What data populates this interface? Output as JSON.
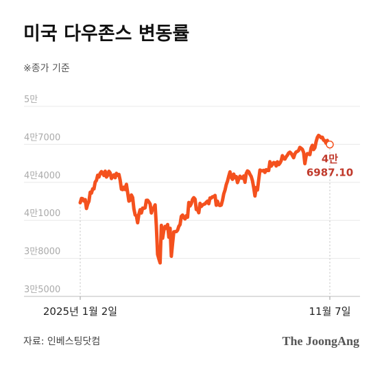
{
  "chart_data": {
    "type": "line",
    "title": "미국 다우존스 변동률",
    "subtitle": "※종가 기준",
    "source": "자료: 인베스팅닷컴",
    "brand": "The JoongAng",
    "ylim": [
      35000,
      50000
    ],
    "yticks": [
      {
        "value": 35000,
        "label": "3만5000"
      },
      {
        "value": 38000,
        "label": "3만8000"
      },
      {
        "value": 41000,
        "label": "4만1000"
      },
      {
        "value": 44000,
        "label": "4만4000"
      },
      {
        "value": 47000,
        "label": "4만7000"
      },
      {
        "value": 50000,
        "label": "5만"
      }
    ],
    "grid": true,
    "categories": [
      "2025년 1월 2일",
      null,
      null,
      null,
      null,
      null,
      null,
      null,
      null,
      null,
      null,
      null,
      null,
      null,
      null,
      null,
      null,
      null,
      null,
      null,
      null,
      null,
      null,
      null,
      null,
      null,
      null,
      null,
      null,
      null,
      null,
      null,
      null,
      null,
      null,
      null,
      null,
      null,
      null,
      null,
      null,
      null,
      null,
      null,
      null,
      null,
      null,
      null,
      null,
      null,
      null,
      null,
      null,
      null,
      null,
      null,
      null,
      null,
      null,
      null,
      null,
      null,
      null,
      null,
      null,
      null,
      null,
      null,
      null,
      null,
      null,
      null,
      null,
      null,
      null,
      null,
      null,
      null,
      null,
      null,
      null,
      null,
      null,
      null,
      null,
      null,
      null,
      null,
      null,
      null,
      null,
      null,
      null,
      null,
      null,
      null,
      null,
      null,
      null,
      null,
      null,
      null,
      null,
      null,
      null,
      null,
      null,
      null,
      null,
      null,
      null,
      null,
      null,
      null,
      null,
      null,
      null,
      null,
      null,
      null,
      null,
      null,
      null,
      null,
      null,
      null,
      null,
      null,
      null,
      null,
      null,
      null,
      null,
      null,
      null,
      null,
      null,
      null,
      null,
      null,
      null,
      null,
      null,
      null,
      null,
      null,
      null,
      null,
      null,
      null,
      null,
      null,
      null,
      null,
      null,
      null,
      null,
      null,
      null,
      null,
      null,
      null,
      null,
      null,
      null,
      null,
      null,
      null,
      null,
      null,
      null,
      null,
      null,
      null,
      null,
      null,
      null,
      null,
      null,
      null,
      null,
      null,
      null,
      null,
      null,
      null,
      null,
      null,
      null,
      null,
      null,
      null,
      null,
      null,
      null,
      null,
      null,
      null,
      null,
      null,
      "11월 7일"
    ],
    "series": [
      {
        "name": "다우존스",
        "color": "#f4511e",
        "values": [
          42392,
          42732,
          42706,
          42528,
          42635,
          41938,
          42297,
          42518,
          43221,
          43153,
          43488,
          43487,
          44025,
          44157,
          44565,
          44424,
          44714,
          44850,
          44713,
          44544,
          44882,
          44421,
          44556,
          44873,
          44747,
          44303,
          44470,
          44593,
          44368,
          44711,
          44556,
          44627,
          44176,
          43461,
          43428,
          43621,
          43433,
          43841,
          43191,
          42520,
          42579,
          43006,
          42801,
          41911,
          41433,
          41350,
          40813,
          41488,
          41841,
          41581,
          41965,
          41953,
          41985,
          42583,
          42587,
          42454,
          42299,
          41583,
          41914,
          42001,
          42225,
          40545,
          38314,
          37965,
          37646,
          40608,
          39593,
          40212,
          40525,
          40368,
          40669,
          39669,
          40373,
          38170,
          39186,
          40093,
          40113,
          40114,
          40227,
          40527,
          40669,
          41317,
          41420,
          41218,
          41113,
          41368,
          41249,
          42410,
          42140,
          42322,
          42655,
          42792,
          42677,
          41860,
          41859,
          41603,
          42343,
          42098,
          42215,
          42270,
          42305,
          42427,
          42519,
          42319,
          42762,
          42761,
          42866,
          42865,
          42968,
          42197,
          42515,
          42215,
          42171,
          42207,
          42581,
          43089,
          43386,
          43819,
          44094,
          44484,
          44828,
          44406,
          44240,
          44650,
          44371,
          44459,
          43982,
          44254,
          44484,
          44342,
          44323,
          44502,
          44010,
          44693,
          44901,
          44837,
          44632,
          44461,
          44130,
          43589,
          42927,
          43588,
          43398,
          44193,
          44969,
          44922,
          44912,
          44946,
          44785,
          45002,
          44939,
          44938,
          45631,
          45282,
          45418,
          45565,
          45545,
          45295,
          45621,
          45400,
          45514,
          45711,
          46108,
          45883,
          45834,
          46018,
          46142,
          46315,
          46381,
          46292,
          46121,
          45947,
          46247,
          46397,
          46441,
          46519,
          46758,
          46694,
          46602,
          46358,
          45479,
          46067,
          46270,
          46253,
          46190,
          46706,
          46924,
          46590,
          46734,
          47207,
          47545,
          47706,
          47632,
          47522,
          47562,
          47336,
          47289,
          47085,
          47311,
          46912,
          46987.1
        ],
        "value_labels": [
          null,
          null,
          null,
          null,
          null,
          null,
          null,
          null,
          null,
          null,
          null,
          null,
          null,
          null,
          null,
          null,
          null,
          null,
          null,
          null,
          null,
          null,
          null,
          null,
          null,
          null,
          null,
          null,
          null,
          null,
          null,
          null,
          null,
          null,
          null,
          null,
          null,
          null,
          null,
          null,
          null,
          null,
          null,
          null,
          null,
          null,
          null,
          null,
          null,
          null,
          null,
          null,
          null,
          null,
          null,
          null,
          null,
          null,
          null,
          null,
          null,
          null,
          null,
          null,
          null,
          null,
          null,
          null,
          null,
          null,
          null,
          null,
          null,
          null,
          null,
          null,
          null,
          null,
          null,
          null,
          null,
          null,
          null,
          null,
          null,
          null,
          null,
          null,
          null,
          null,
          null,
          null,
          null,
          null,
          null,
          null,
          null,
          null,
          null,
          null,
          null,
          null,
          null,
          null,
          null,
          null,
          null,
          null,
          null,
          null,
          null,
          null,
          null,
          null,
          null,
          null,
          null,
          null,
          null,
          null,
          null,
          null,
          null,
          null,
          null,
          null,
          null,
          null,
          null,
          null,
          null,
          null,
          null,
          null,
          null,
          null,
          null,
          null,
          null,
          null,
          null,
          null,
          null,
          null,
          null,
          null,
          null,
          null,
          null,
          null,
          null,
          null,
          null,
          null,
          null,
          null,
          null,
          null,
          null,
          null,
          null,
          null,
          null,
          null,
          null,
          null,
          null,
          null,
          null,
          null,
          null,
          null,
          null,
          null,
          null,
          null,
          null,
          null,
          null,
          null,
          null,
          null,
          null,
          null,
          null,
          null,
          null,
          null,
          null,
          null,
          null,
          null,
          null,
          null,
          null,
          null,
          null,
          null,
          null,
          null,
          "4만 6987.10"
        ]
      }
    ]
  }
}
